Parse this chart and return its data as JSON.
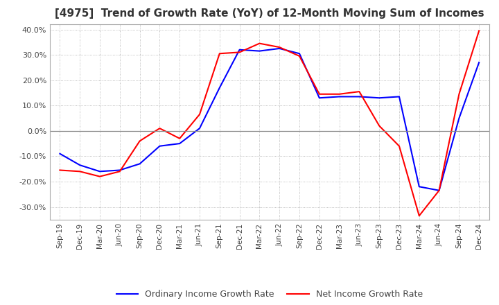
{
  "title": "[4975]  Trend of Growth Rate (YoY) of 12-Month Moving Sum of Incomes",
  "title_fontsize": 11,
  "ylim": [
    -0.35,
    0.42
  ],
  "yticks": [
    -0.3,
    -0.2,
    -0.1,
    0.0,
    0.1,
    0.2,
    0.3,
    0.4
  ],
  "legend_labels": [
    "Ordinary Income Growth Rate",
    "Net Income Growth Rate"
  ],
  "line_colors": [
    "#0000ff",
    "#ff0000"
  ],
  "background_color": "#ffffff",
  "grid_color": "#aaaaaa",
  "x_labels": [
    "Sep-19",
    "Dec-19",
    "Mar-20",
    "Jun-20",
    "Sep-20",
    "Dec-20",
    "Mar-21",
    "Jun-21",
    "Sep-21",
    "Dec-21",
    "Mar-22",
    "Jun-22",
    "Sep-22",
    "Dec-22",
    "Mar-23",
    "Jun-23",
    "Sep-23",
    "Dec-23",
    "Mar-24",
    "Jun-24",
    "Sep-24",
    "Dec-24"
  ],
  "ordinary_income": [
    -0.09,
    -0.135,
    -0.16,
    -0.155,
    -0.13,
    -0.06,
    -0.05,
    0.01,
    0.17,
    0.32,
    0.315,
    0.325,
    0.305,
    0.13,
    0.135,
    0.135,
    0.13,
    0.135,
    -0.22,
    -0.235,
    0.05,
    0.27
  ],
  "net_income": [
    -0.155,
    -0.16,
    -0.18,
    -0.16,
    -0.04,
    0.01,
    -0.03,
    0.065,
    0.305,
    0.31,
    0.345,
    0.33,
    0.295,
    0.145,
    0.145,
    0.155,
    0.02,
    -0.06,
    -0.335,
    -0.235,
    0.145,
    0.395
  ]
}
